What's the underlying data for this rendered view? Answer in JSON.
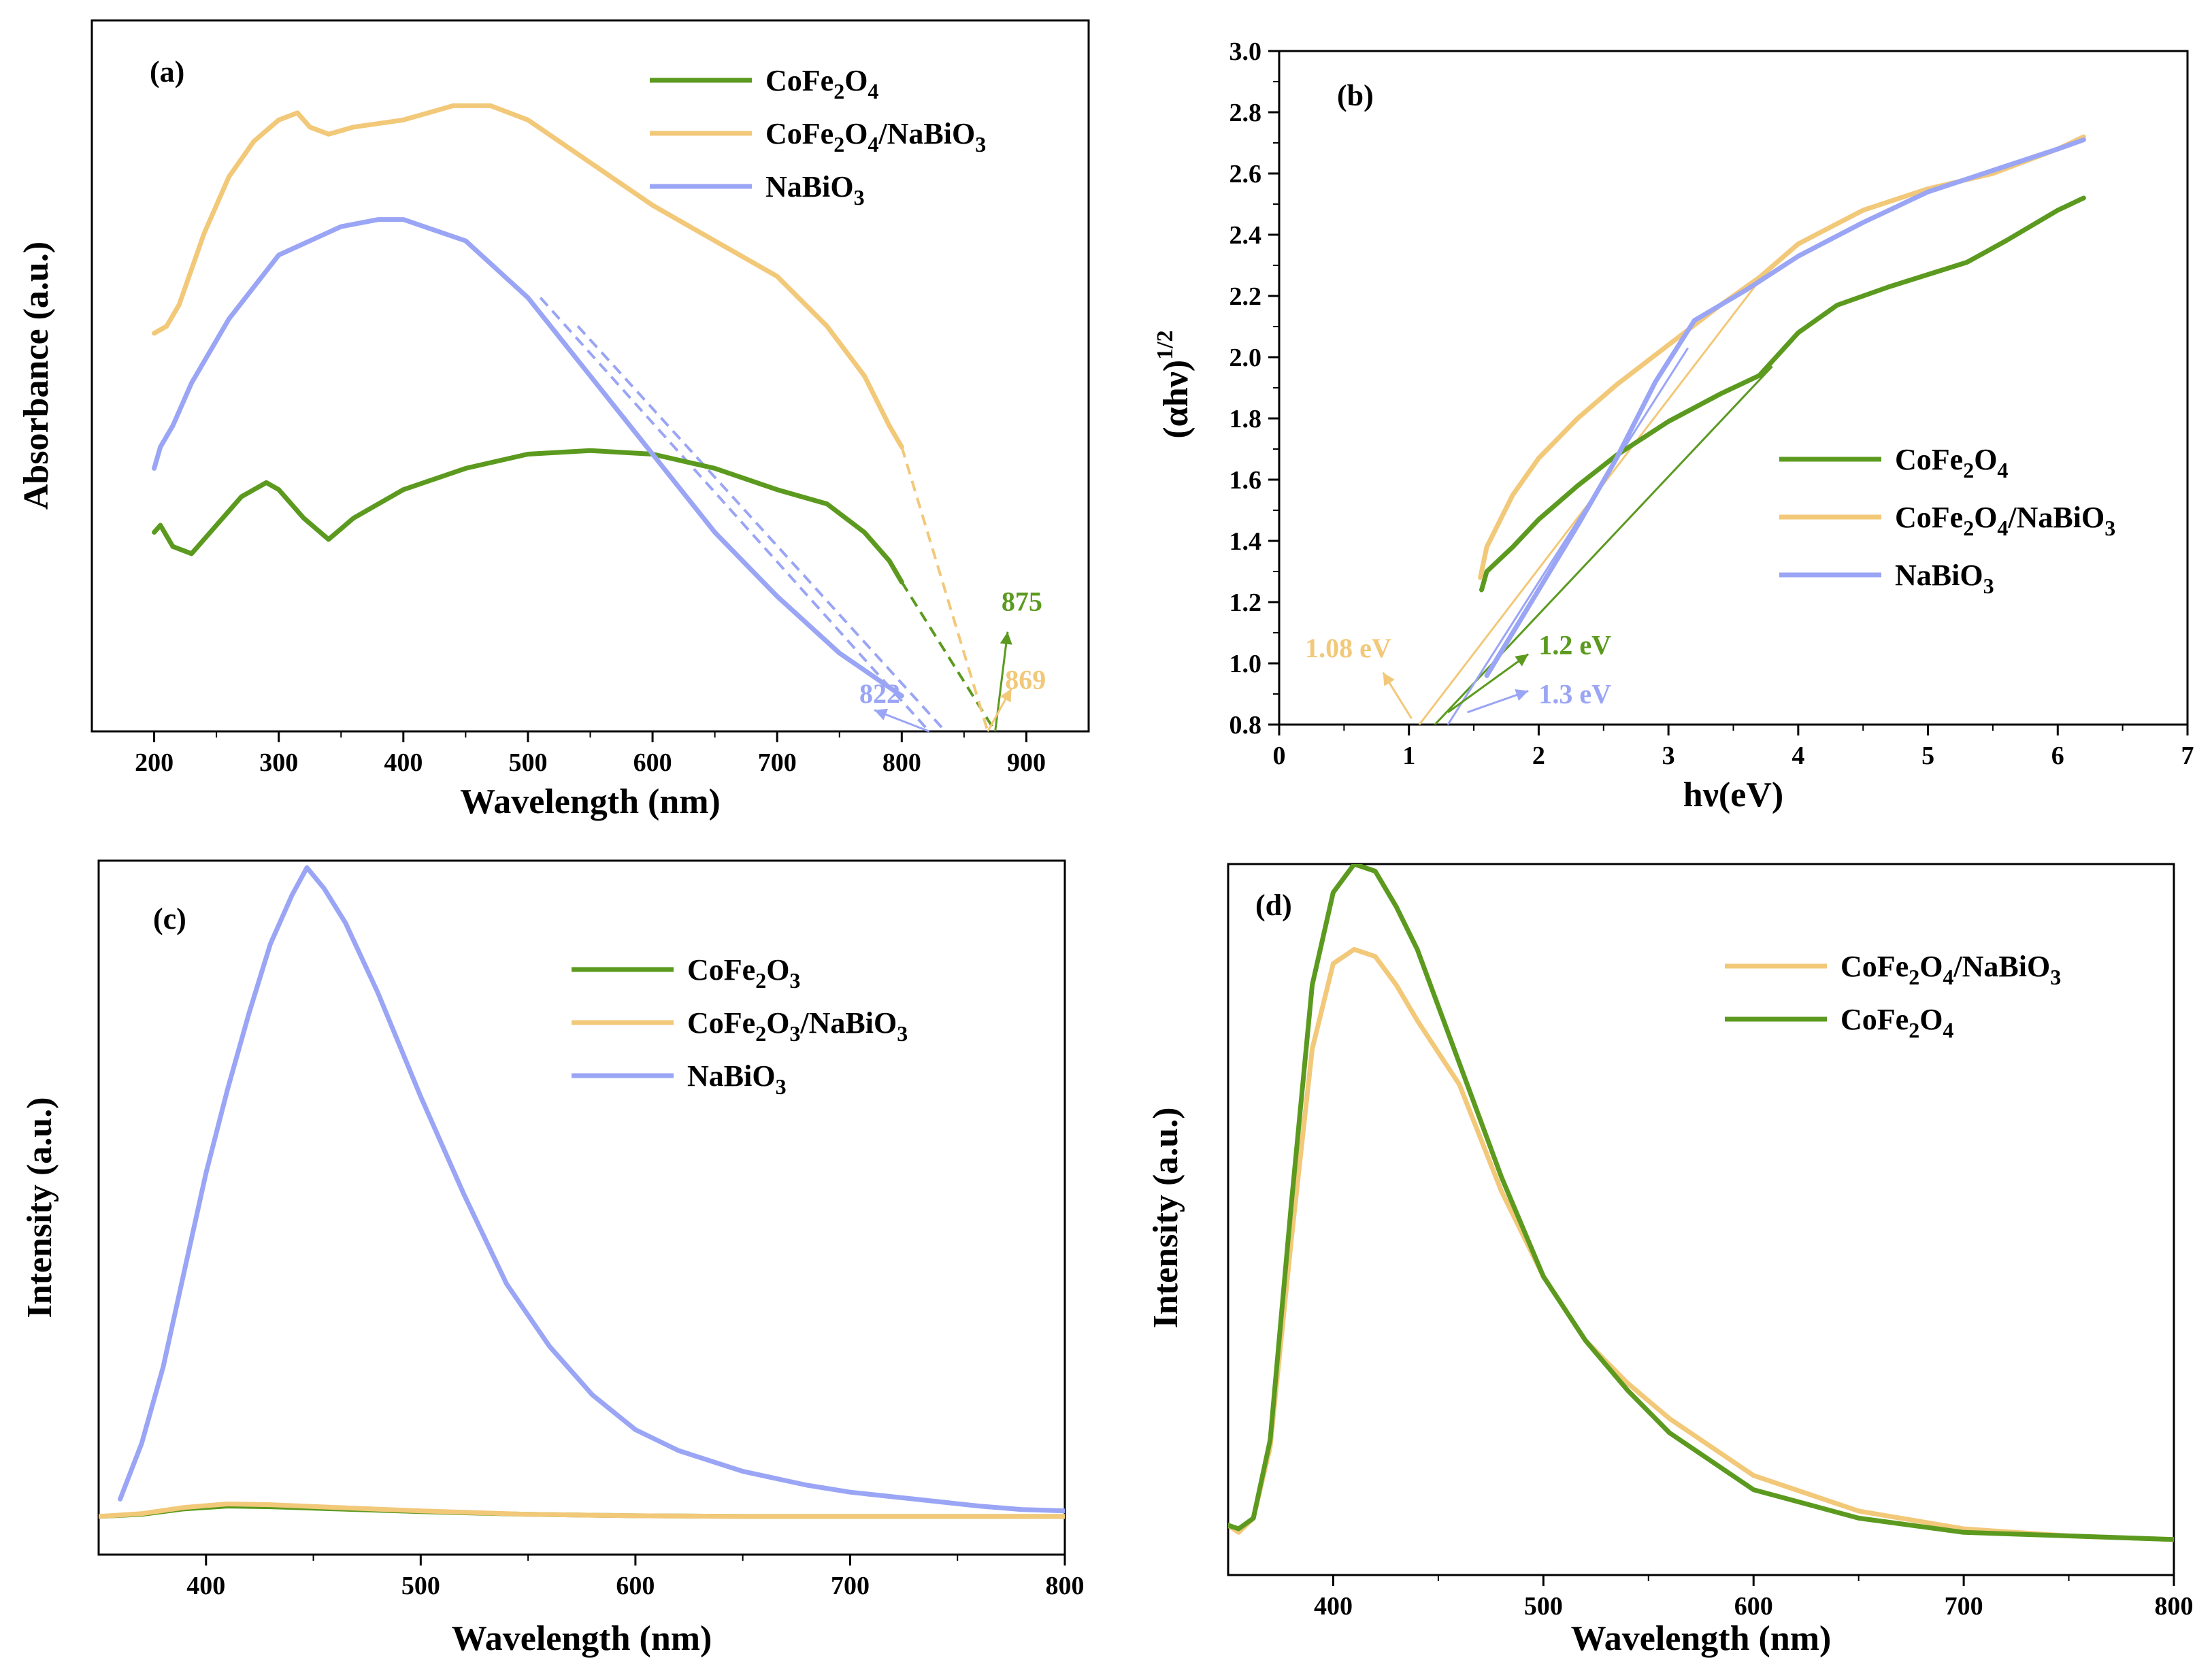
{
  "colors": {
    "green": "#5B9A1F",
    "orange": "#F2C879",
    "blue": "#9AA5F5"
  },
  "chart_data": [
    {
      "id": "a",
      "type": "line",
      "panel_label": "(a)",
      "xlabel": "Wavelength (nm)",
      "ylabel": "Absorbance (a.u.)",
      "xlim": [
        150,
        950
      ],
      "ylim": [
        0,
        1.0
      ],
      "xticks": [
        200,
        300,
        400,
        500,
        600,
        700,
        800,
        900
      ],
      "legend_position": "top-right",
      "legend": [
        {
          "pre": "CoFe",
          "sub1": "2",
          "mid": "O",
          "sub2": "4",
          "post": "",
          "sub3": "",
          "color": "green"
        },
        {
          "pre": "CoFe",
          "sub1": "2",
          "mid": "O",
          "sub2": "4",
          "post": "/NaBiO",
          "sub3": "3",
          "color": "orange"
        },
        {
          "pre": "NaBiO",
          "sub1": "3",
          "mid": "",
          "sub2": "",
          "post": "",
          "sub3": "",
          "color": "blue"
        }
      ],
      "series": [
        {
          "name": "CoFe2O4",
          "color": "green",
          "x": [
            200,
            205,
            215,
            230,
            250,
            270,
            290,
            300,
            320,
            340,
            360,
            400,
            450,
            500,
            550,
            600,
            650,
            700,
            740,
            770,
            790,
            800
          ],
          "y": [
            0.28,
            0.29,
            0.26,
            0.25,
            0.29,
            0.33,
            0.35,
            0.34,
            0.3,
            0.27,
            0.3,
            0.34,
            0.37,
            0.39,
            0.395,
            0.39,
            0.37,
            0.34,
            0.32,
            0.28,
            0.24,
            0.21
          ]
        },
        {
          "name": "CoFe2O4/NaBiO3",
          "color": "orange",
          "x": [
            200,
            210,
            220,
            240,
            260,
            280,
            300,
            315,
            325,
            340,
            360,
            400,
            440,
            470,
            500,
            550,
            600,
            650,
            700,
            740,
            770,
            790,
            800
          ],
          "y": [
            0.56,
            0.57,
            0.6,
            0.7,
            0.78,
            0.83,
            0.86,
            0.87,
            0.85,
            0.84,
            0.85,
            0.86,
            0.88,
            0.88,
            0.86,
            0.8,
            0.74,
            0.69,
            0.64,
            0.57,
            0.5,
            0.43,
            0.4
          ]
        },
        {
          "name": "NaBiO3",
          "color": "blue",
          "x": [
            200,
            205,
            215,
            230,
            260,
            300,
            350,
            380,
            400,
            450,
            500,
            550,
            600,
            650,
            700,
            750,
            800
          ],
          "y": [
            0.37,
            0.4,
            0.43,
            0.49,
            0.58,
            0.67,
            0.71,
            0.72,
            0.72,
            0.69,
            0.61,
            0.5,
            0.39,
            0.28,
            0.19,
            0.11,
            0.05
          ]
        }
      ],
      "extrapolations": [
        {
          "color": "green",
          "x": [
            800,
            875
          ],
          "y": [
            0.21,
            0.0
          ]
        },
        {
          "color": "orange",
          "x": [
            800,
            869
          ],
          "y": [
            0.4,
            0.0
          ]
        },
        {
          "color": "blue",
          "x": [
            510,
            822
          ],
          "y": [
            0.61,
            0.0
          ]
        },
        {
          "color": "blue",
          "x": [
            540,
            835
          ],
          "y": [
            0.57,
            0.0
          ]
        }
      ],
      "annotations": [
        {
          "text": "875",
          "color": "green",
          "x": 880,
          "y": 0.17,
          "arrow": [
            875,
            0.0,
            885,
            0.14
          ]
        },
        {
          "text": "869",
          "color": "orange",
          "x": 883,
          "y": 0.06,
          "arrow": [
            869,
            0.0,
            888,
            0.06
          ]
        },
        {
          "text": "822",
          "color": "blue",
          "x": 766,
          "y": 0.04,
          "arrow": [
            822,
            0.0,
            778,
            0.03
          ]
        }
      ]
    },
    {
      "id": "b",
      "type": "line",
      "panel_label": "(b)",
      "xlabel": "hν(eV)",
      "ylabel_main": "(αhν)",
      "ylabel_sup": "1/2",
      "xlim": [
        0,
        7
      ],
      "ylim": [
        0.8,
        3.0
      ],
      "xticks": [
        0,
        1,
        2,
        3,
        4,
        5,
        6,
        7
      ],
      "yticks": [
        "0.8",
        "1.0",
        "1.2",
        "1.4",
        "1.6",
        "1.8",
        "2.0",
        "2.2",
        "2.4",
        "2.6",
        "2.8",
        "3.0"
      ],
      "legend_position": "right",
      "legend": [
        {
          "pre": "CoFe",
          "sub1": "2",
          "mid": "O",
          "sub2": "4",
          "post": "",
          "sub3": "",
          "color": "green"
        },
        {
          "pre": "CoFe",
          "sub1": "2",
          "mid": "O",
          "sub2": "4",
          "post": "/NaBiO",
          "sub3": "3",
          "color": "orange"
        },
        {
          "pre": "NaBiO",
          "sub1": "3",
          "mid": "",
          "sub2": "",
          "post": "",
          "sub3": "",
          "color": "blue"
        }
      ],
      "series": [
        {
          "name": "CoFe2O4",
          "color": "green",
          "x": [
            1.56,
            1.6,
            1.8,
            2.0,
            2.3,
            2.6,
            3.0,
            3.4,
            3.7,
            4.0,
            4.3,
            4.7,
            5.0,
            5.3,
            5.6,
            6.0,
            6.2
          ],
          "y": [
            1.24,
            1.3,
            1.38,
            1.47,
            1.58,
            1.68,
            1.79,
            1.88,
            1.94,
            2.08,
            2.17,
            2.23,
            2.27,
            2.31,
            2.38,
            2.48,
            2.52
          ]
        },
        {
          "name": "CoFe2O4/NaBiO3",
          "color": "orange",
          "x": [
            1.55,
            1.6,
            1.8,
            2.0,
            2.3,
            2.6,
            3.0,
            3.4,
            3.7,
            4.0,
            4.5,
            5.0,
            5.5,
            6.0,
            6.2
          ],
          "y": [
            1.28,
            1.38,
            1.55,
            1.67,
            1.8,
            1.91,
            2.04,
            2.17,
            2.26,
            2.37,
            2.48,
            2.55,
            2.6,
            2.68,
            2.72
          ]
        },
        {
          "name": "NaBiO3",
          "color": "blue",
          "x": [
            1.6,
            1.8,
            2.0,
            2.3,
            2.6,
            2.9,
            3.2,
            3.6,
            4.0,
            4.5,
            5.0,
            5.5,
            6.0,
            6.2
          ],
          "y": [
            0.96,
            1.1,
            1.24,
            1.45,
            1.67,
            1.92,
            2.12,
            2.22,
            2.33,
            2.44,
            2.54,
            2.61,
            2.68,
            2.71
          ]
        }
      ],
      "tangents": [
        {
          "color": "green",
          "x": [
            1.2,
            3.8
          ],
          "y": [
            0.8,
            1.97
          ]
        },
        {
          "color": "orange",
          "x": [
            1.08,
            3.7
          ],
          "y": [
            0.8,
            2.25
          ]
        },
        {
          "color": "blue",
          "x": [
            1.3,
            3.15
          ],
          "y": [
            0.8,
            2.03
          ]
        }
      ],
      "annotations": [
        {
          "text": "1.08 eV",
          "color": "orange",
          "x": 0.2,
          "y": 1.02,
          "arrow": [
            1.02,
            0.82,
            0.8,
            0.97
          ]
        },
        {
          "text": "1.2 eV",
          "color": "green",
          "x": 2.0,
          "y": 1.03,
          "arrow": [
            1.3,
            0.84,
            1.92,
            1.03
          ]
        },
        {
          "text": "1.3 eV",
          "color": "blue",
          "x": 2.0,
          "y": 0.87,
          "arrow": [
            1.45,
            0.84,
            1.92,
            0.91
          ]
        }
      ]
    },
    {
      "id": "c",
      "type": "line",
      "panel_label": "(c)",
      "xlabel": "Wavelength (nm)",
      "ylabel": "Intensity (a.u.)",
      "xlim": [
        350,
        800
      ],
      "ylim": [
        0,
        1.0
      ],
      "xticks": [
        400,
        500,
        600,
        700,
        800
      ],
      "legend_position": "top-right",
      "legend": [
        {
          "pre": "CoFe",
          "sub1": "2",
          "mid": "O",
          "sub2": "3",
          "post": "",
          "sub3": "",
          "color": "green"
        },
        {
          "pre": "CoFe",
          "sub1": "2",
          "mid": "O",
          "sub2": "3",
          "post": "/NaBiO",
          "sub3": "3",
          "color": "orange"
        },
        {
          "pre": "NaBiO",
          "sub1": "3",
          "mid": "",
          "sub2": "",
          "post": "",
          "sub3": "",
          "color": "blue"
        }
      ],
      "series": [
        {
          "name": "CoFe2O3",
          "color": "green",
          "x": [
            350,
            370,
            390,
            410,
            430,
            460,
            500,
            550,
            600,
            650,
            700,
            800
          ],
          "y": [
            0.055,
            0.058,
            0.066,
            0.07,
            0.069,
            0.066,
            0.062,
            0.058,
            0.056,
            0.055,
            0.055,
            0.055
          ]
        },
        {
          "name": "CoFe2O3/NaBiO3",
          "color": "orange",
          "x": [
            350,
            370,
            390,
            410,
            430,
            460,
            500,
            550,
            600,
            650,
            700,
            800
          ],
          "y": [
            0.055,
            0.059,
            0.068,
            0.073,
            0.072,
            0.068,
            0.063,
            0.058,
            0.056,
            0.055,
            0.055,
            0.055
          ]
        },
        {
          "name": "NaBiO3",
          "color": "blue",
          "x": [
            360,
            370,
            380,
            390,
            400,
            410,
            420,
            430,
            440,
            447,
            455,
            465,
            480,
            500,
            520,
            540,
            560,
            580,
            600,
            620,
            650,
            680,
            700,
            730,
            760,
            780,
            800
          ],
          "y": [
            0.08,
            0.16,
            0.27,
            0.41,
            0.55,
            0.67,
            0.78,
            0.88,
            0.95,
            0.99,
            0.96,
            0.91,
            0.81,
            0.66,
            0.52,
            0.39,
            0.3,
            0.23,
            0.18,
            0.15,
            0.12,
            0.1,
            0.09,
            0.08,
            0.07,
            0.065,
            0.063
          ]
        }
      ]
    },
    {
      "id": "d",
      "type": "line",
      "panel_label": "(d)",
      "xlabel": "Wavelength (nm)",
      "ylabel": "Intensity (a.u.)",
      "xlim": [
        350,
        800
      ],
      "ylim": [
        0,
        1.0
      ],
      "xticks": [
        400,
        500,
        600,
        700,
        800
      ],
      "legend_position": "top-right",
      "legend": [
        {
          "pre": "CoFe",
          "sub1": "2",
          "mid": "O",
          "sub2": "4",
          "post": "/NaBiO",
          "sub3": "3",
          "color": "orange"
        },
        {
          "pre": "CoFe",
          "sub1": "2",
          "mid": "O",
          "sub2": "4",
          "post": "",
          "sub3": "",
          "color": "green"
        }
      ],
      "series": [
        {
          "name": "CoFe2O4/NaBiO3",
          "color": "orange",
          "x": [
            350,
            355,
            362,
            370,
            380,
            390,
            400,
            410,
            420,
            430,
            440,
            460,
            480,
            500,
            520,
            540,
            560,
            600,
            650,
            700,
            750,
            800
          ],
          "y": [
            0.07,
            0.06,
            0.08,
            0.18,
            0.47,
            0.74,
            0.86,
            0.88,
            0.87,
            0.83,
            0.78,
            0.69,
            0.54,
            0.42,
            0.33,
            0.27,
            0.22,
            0.14,
            0.09,
            0.065,
            0.055,
            0.05
          ]
        },
        {
          "name": "CoFe2O4",
          "color": "green",
          "x": [
            350,
            355,
            362,
            370,
            380,
            390,
            400,
            410,
            420,
            430,
            440,
            460,
            480,
            500,
            520,
            540,
            560,
            600,
            650,
            700,
            750,
            800
          ],
          "y": [
            0.07,
            0.065,
            0.08,
            0.19,
            0.52,
            0.83,
            0.96,
            1.0,
            0.99,
            0.94,
            0.88,
            0.72,
            0.56,
            0.42,
            0.33,
            0.26,
            0.2,
            0.12,
            0.08,
            0.06,
            0.055,
            0.05
          ]
        }
      ]
    }
  ]
}
